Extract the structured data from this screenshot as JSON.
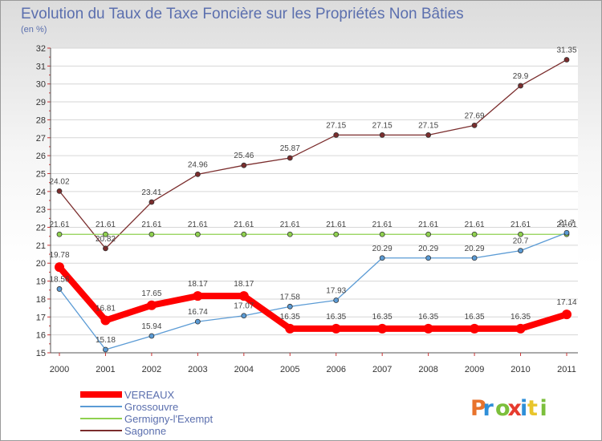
{
  "chart_data": {
    "type": "line",
    "title": "Evolution du Taux de Taxe Foncière sur les Propriétés Non Bâties",
    "subtitle": "(en %)",
    "x": [
      "2000",
      "2001",
      "2002",
      "2003",
      "2004",
      "2005",
      "2006",
      "2007",
      "2008",
      "2009",
      "2010",
      "2011"
    ],
    "y_ticks": [
      "15",
      "16",
      "17",
      "18",
      "19",
      "20",
      "21",
      "22",
      "23",
      "24",
      "25",
      "26",
      "27",
      "28",
      "29",
      "30",
      "31",
      "32"
    ],
    "ylim": [
      15,
      32
    ],
    "grid": "horizontal",
    "legend_placement": "bottom-left",
    "series": [
      {
        "name": "VEREAUX",
        "color": "#ff0000",
        "values": [
          19.78,
          16.81,
          17.65,
          18.17,
          18.17,
          16.35,
          16.35,
          16.35,
          16.35,
          16.35,
          16.35,
          17.14
        ],
        "labels": [
          "19.78",
          "16.81",
          "17.65",
          "18.17",
          "18.17",
          "16.35",
          "16.35",
          "16.35",
          "16.35",
          "16.35",
          "16.35",
          "17.14"
        ]
      },
      {
        "name": "Grossouvre",
        "color": "#5b9bd5",
        "values": [
          18.56,
          15.18,
          15.94,
          16.74,
          17.07,
          17.58,
          17.93,
          20.29,
          20.29,
          20.29,
          20.7,
          21.7
        ],
        "labels": [
          "18.56",
          "15.18",
          "15.94",
          "16.74",
          "17.07",
          "17.58",
          "17.93",
          "20.29",
          "20.29",
          "20.29",
          "20.7",
          "21.7"
        ]
      },
      {
        "name": "Germigny-l'Exempt",
        "color": "#8fd14f",
        "values": [
          21.61,
          21.61,
          21.61,
          21.61,
          21.61,
          21.61,
          21.61,
          21.61,
          21.61,
          21.61,
          21.61,
          21.61
        ],
        "labels": [
          "21.61",
          "21.61",
          "21.61",
          "21.61",
          "21.61",
          "21.61",
          "21.61",
          "21.61",
          "21.61",
          "21.61",
          "21.61",
          "21.61"
        ]
      },
      {
        "name": "Sagonne",
        "color": "#7b2d2d",
        "values": [
          24.02,
          20.82,
          23.41,
          24.96,
          25.46,
          25.87,
          27.15,
          27.15,
          27.15,
          27.69,
          29.9,
          31.35
        ],
        "labels": [
          "24.02",
          "20.82",
          "23.41",
          "24.96",
          "25.46",
          "25.87",
          "27.15",
          "27.15",
          "27.15",
          "27.69",
          "29.9",
          "31.35"
        ]
      }
    ]
  },
  "logo": {
    "text": "Proxiti"
  }
}
